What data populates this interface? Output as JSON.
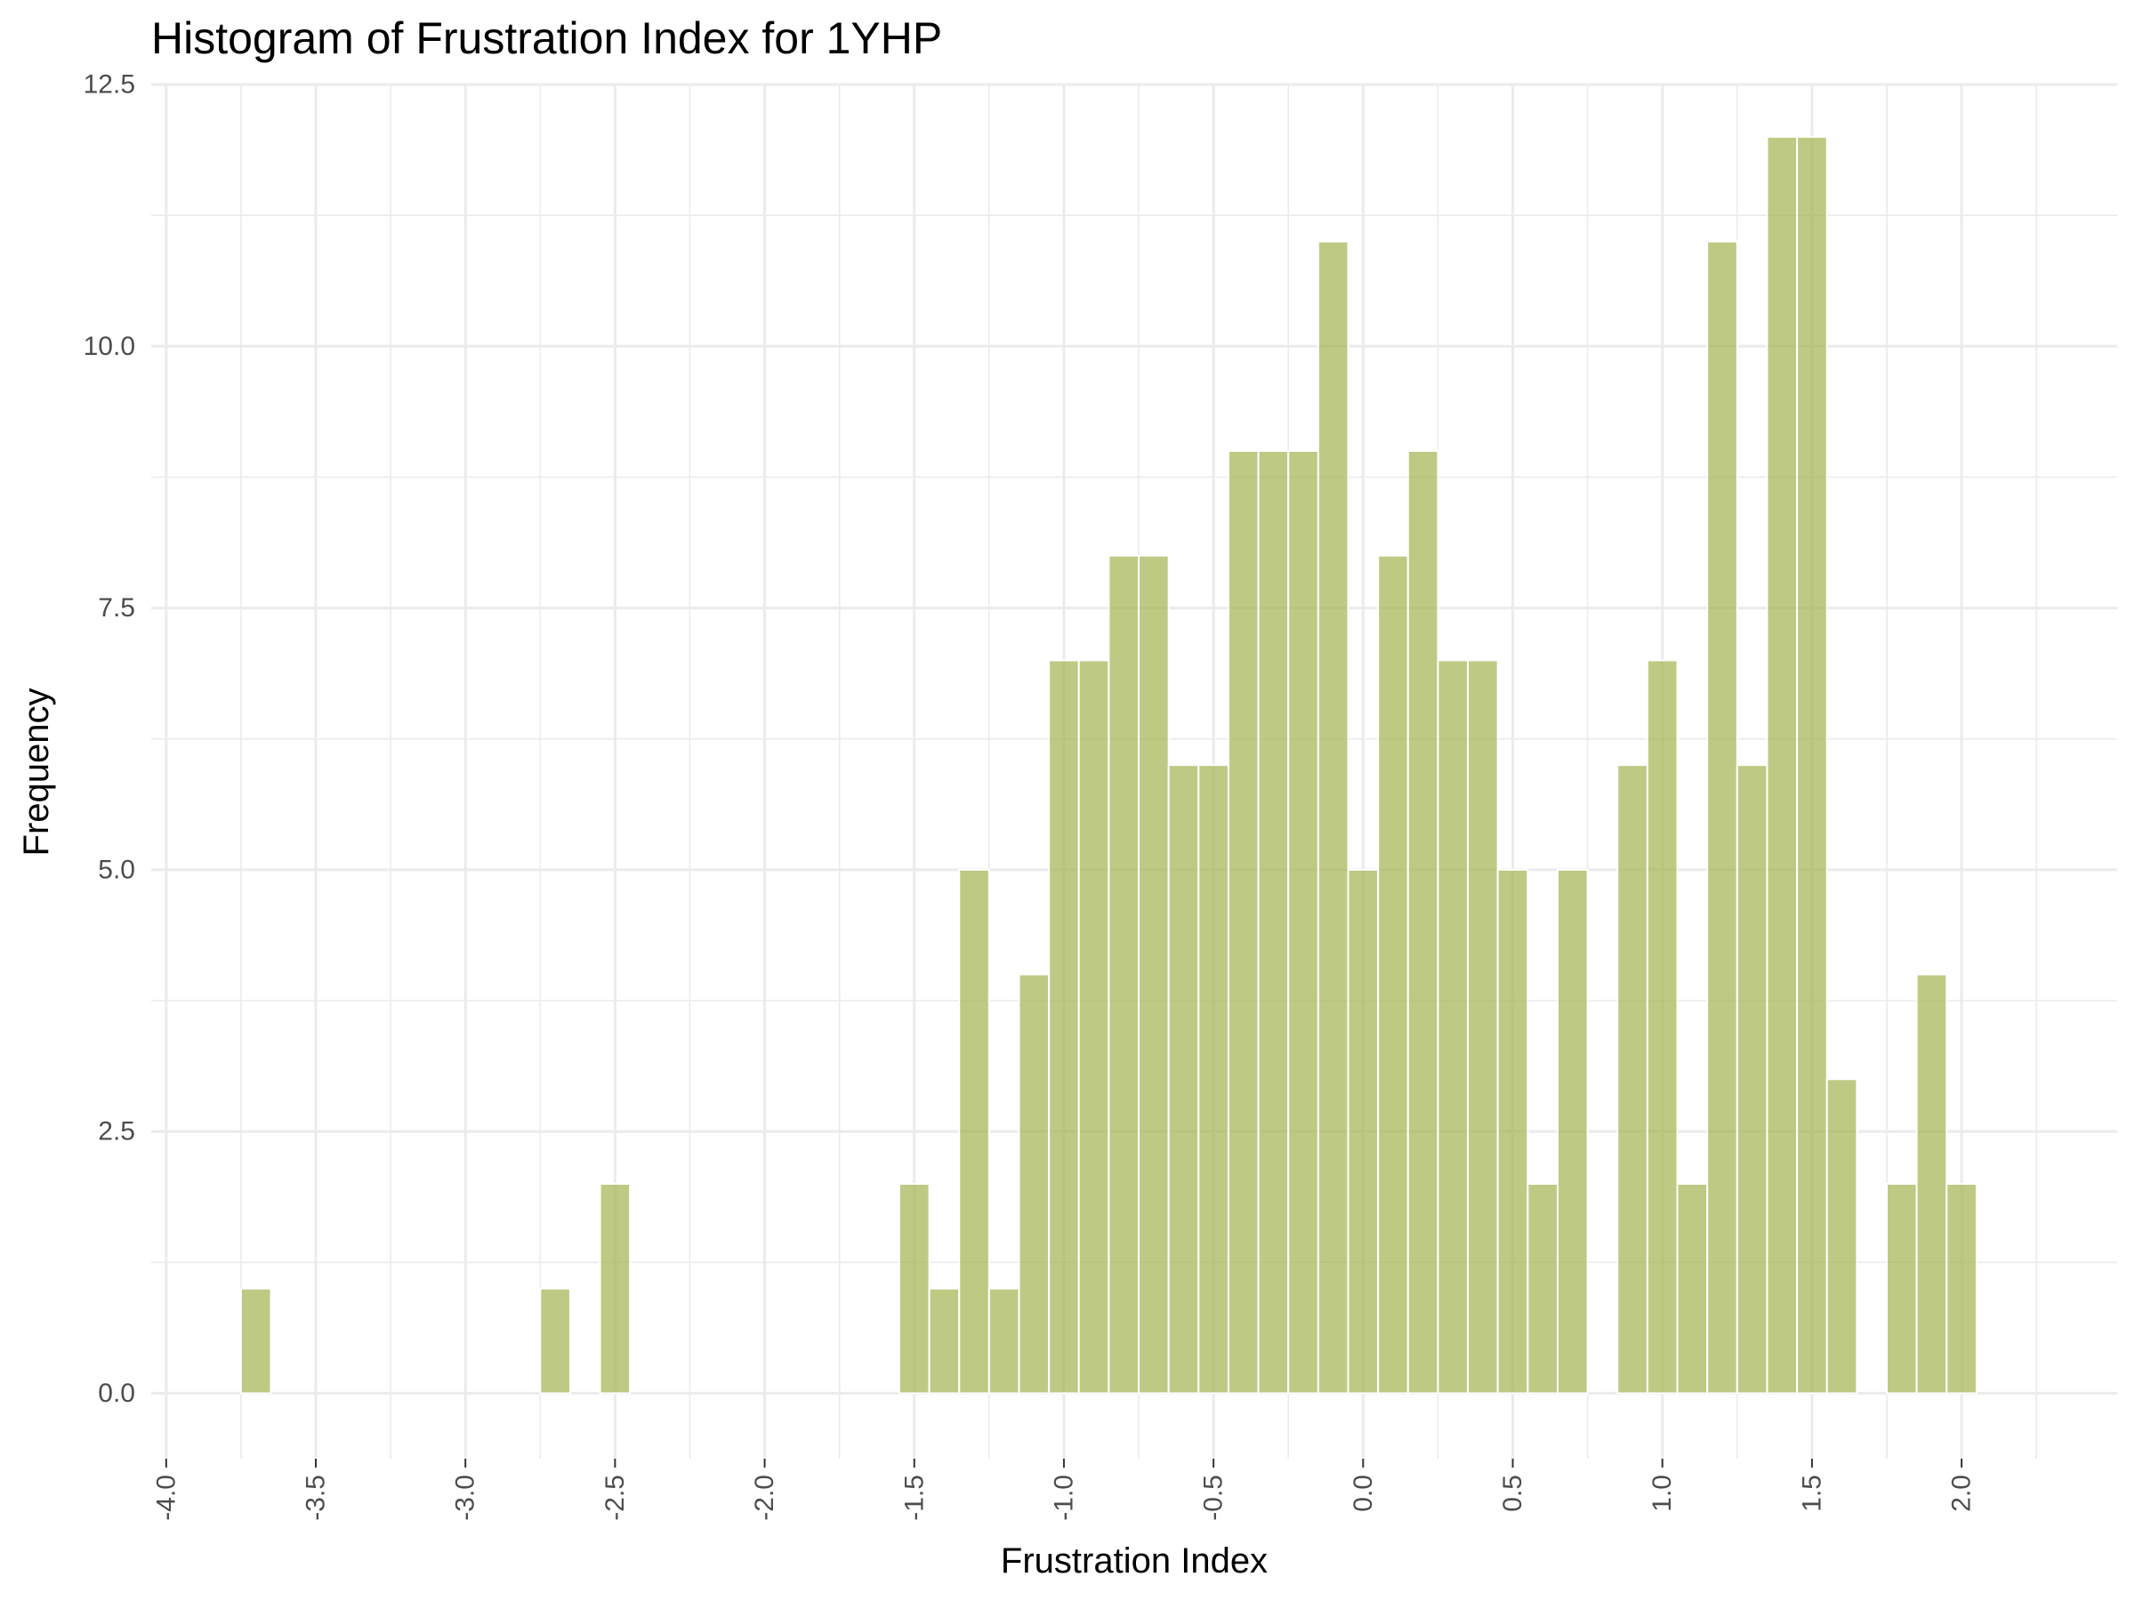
{
  "chart_data": {
    "type": "bar",
    "title": "Histogram of Frustration Index for 1YHP",
    "xlabel": "Frustration Index",
    "ylabel": "Frequency",
    "bin_width": 0.1,
    "bin_centers": [
      -3.7,
      -2.7,
      -2.5,
      -1.5,
      -1.4,
      -1.3,
      -1.2,
      -1.1,
      -1.0,
      -0.9,
      -0.8,
      -0.7,
      -0.6,
      -0.5,
      -0.4,
      -0.3,
      -0.2,
      -0.1,
      0.0,
      0.1,
      0.2,
      0.3,
      0.4,
      0.5,
      0.6,
      0.7,
      0.9,
      1.0,
      1.1,
      1.2,
      1.3,
      1.4,
      1.5,
      1.6,
      1.8,
      1.9,
      2.0
    ],
    "values": [
      1,
      1,
      2,
      2,
      1,
      5,
      1,
      4,
      7,
      7,
      8,
      8,
      6,
      6,
      9,
      9,
      9,
      11,
      5,
      8,
      9,
      7,
      7,
      5,
      2,
      5,
      6,
      7,
      2,
      11,
      6,
      12,
      12,
      3,
      2,
      4,
      2
    ],
    "xlim": [
      -4.05,
      2.52
    ],
    "ylim": [
      -0.625,
      12.5
    ],
    "x_ticks": [
      "-4.0",
      "-3.5",
      "-3.0",
      "-2.5",
      "-2.0",
      "-1.5",
      "-1.0",
      "-0.5",
      "0.0",
      "0.5",
      "1.0",
      "1.5",
      "2.0"
    ],
    "y_ticks": [
      "0.0",
      "2.5",
      "5.0",
      "7.5",
      "10.0",
      "12.5"
    ],
    "bar_color": "#A3B350",
    "bar_opacity": 0.7,
    "grid": true,
    "theme": "minimal"
  }
}
